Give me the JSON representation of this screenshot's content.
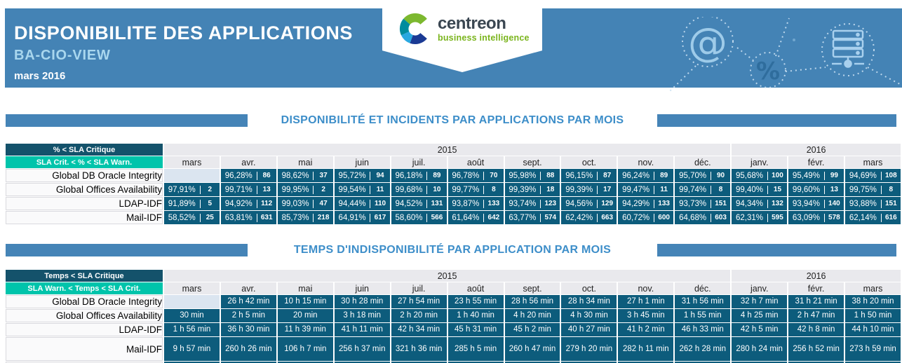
{
  "report": {
    "title": "DISPONIBILITE DES APPLICATIONS",
    "subtitle": "BA-CIO-VIEW",
    "period": "mars 2016"
  },
  "logo": {
    "brand": "centreon",
    "tagline": "business intelligence"
  },
  "decor_icons": [
    "at-sign",
    "percent",
    "server"
  ],
  "sections": [
    {
      "title": "DISPONIBILITÉ ET INCIDENTS PAR APPLICATIONS PAR MOIS",
      "table": {
        "legend_critical": "% < SLA Critique",
        "legend_warning": "SLA Crit. < % < SLA Warn.",
        "years": [
          {
            "label": "2015",
            "span": 10
          },
          {
            "label": "2016",
            "span": 3
          }
        ],
        "months": [
          "mars",
          "avr.",
          "mai",
          "juin",
          "juil.",
          "août",
          "sept.",
          "oct.",
          "nov.",
          "déc.",
          "janv.",
          "févr.",
          "mars"
        ],
        "rows": [
          {
            "label": "Global DB Oracle Integrity",
            "cells": [
              null,
              {
                "pct": "96,28%",
                "n": "86"
              },
              {
                "pct": "98,62%",
                "n": "37"
              },
              {
                "pct": "95,72%",
                "n": "94"
              },
              {
                "pct": "96,18%",
                "n": "89"
              },
              {
                "pct": "96,78%",
                "n": "70"
              },
              {
                "pct": "95,98%",
                "n": "88"
              },
              {
                "pct": "96,15%",
                "n": "87"
              },
              {
                "pct": "96,24%",
                "n": "89"
              },
              {
                "pct": "95,70%",
                "n": "90"
              },
              {
                "pct": "95,68%",
                "n": "100"
              },
              {
                "pct": "95,49%",
                "n": "99"
              },
              {
                "pct": "94,69%",
                "n": "108"
              }
            ]
          },
          {
            "label": "Global Offices Availability",
            "cells": [
              {
                "pct": "97,91%",
                "n": "2"
              },
              {
                "pct": "99,71%",
                "n": "13"
              },
              {
                "pct": "99,95%",
                "n": "2"
              },
              {
                "pct": "99,54%",
                "n": "11"
              },
              {
                "pct": "99,68%",
                "n": "10"
              },
              {
                "pct": "99,77%",
                "n": "8"
              },
              {
                "pct": "99,39%",
                "n": "18"
              },
              {
                "pct": "99,39%",
                "n": "17"
              },
              {
                "pct": "99,47%",
                "n": "11"
              },
              {
                "pct": "99,74%",
                "n": "8"
              },
              {
                "pct": "99,40%",
                "n": "15"
              },
              {
                "pct": "99,60%",
                "n": "13"
              },
              {
                "pct": "99,75%",
                "n": "8"
              }
            ]
          },
          {
            "label": "LDAP-IDF",
            "cells": [
              {
                "pct": "91,89%",
                "n": "5"
              },
              {
                "pct": "94,92%",
                "n": "112"
              },
              {
                "pct": "99,03%",
                "n": "47"
              },
              {
                "pct": "94,44%",
                "n": "110"
              },
              {
                "pct": "94,52%",
                "n": "131"
              },
              {
                "pct": "93,87%",
                "n": "133"
              },
              {
                "pct": "93,74%",
                "n": "123"
              },
              {
                "pct": "94,56%",
                "n": "129"
              },
              {
                "pct": "94,29%",
                "n": "133"
              },
              {
                "pct": "93,73%",
                "n": "151"
              },
              {
                "pct": "94,34%",
                "n": "132"
              },
              {
                "pct": "93,94%",
                "n": "140"
              },
              {
                "pct": "93,88%",
                "n": "151"
              }
            ]
          },
          {
            "label": "Mail-IDF",
            "cells": [
              {
                "pct": "58,52%",
                "n": "25"
              },
              {
                "pct": "63,81%",
                "n": "631"
              },
              {
                "pct": "85,73%",
                "n": "218"
              },
              {
                "pct": "64,91%",
                "n": "617"
              },
              {
                "pct": "58,60%",
                "n": "566"
              },
              {
                "pct": "61,64%",
                "n": "642"
              },
              {
                "pct": "63,77%",
                "n": "574"
              },
              {
                "pct": "62,42%",
                "n": "663"
              },
              {
                "pct": "60,72%",
                "n": "600"
              },
              {
                "pct": "64,68%",
                "n": "603"
              },
              {
                "pct": "62,31%",
                "n": "595"
              },
              {
                "pct": "63,09%",
                "n": "578"
              },
              {
                "pct": "62,14%",
                "n": "616"
              }
            ]
          }
        ]
      }
    },
    {
      "title": "TEMPS D'INDISPONIBILITÉ PAR APPLICATION PAR MOIS",
      "table": {
        "legend_critical": "Temps < SLA Critique",
        "legend_warning": "SLA Warn. < Temps < SLA Crit.",
        "years": [
          {
            "label": "2015",
            "span": 10
          },
          {
            "label": "2016",
            "span": 3
          }
        ],
        "months": [
          "mars",
          "avr.",
          "mai",
          "juin",
          "juil.",
          "août",
          "sept.",
          "oct.",
          "nov.",
          "déc.",
          "janv.",
          "févr.",
          "mars"
        ],
        "rows": [
          {
            "label": "Global DB Oracle Integrity",
            "cells": [
              null,
              "26 h 42 min",
              "10 h 15 min",
              "30 h 28 min",
              "27 h 54 min",
              "23 h 55 min",
              "28 h 56 min",
              "28 h 34 min",
              "27 h 1 min",
              "31 h 56 min",
              "32 h 7 min",
              "31 h 21 min",
              "38 h 20 min"
            ]
          },
          {
            "label": "Global Offices Availability",
            "cells": [
              "30 min",
              "2 h 5 min",
              "20 min",
              "3 h 18 min",
              "2 h 20 min",
              "1 h 40 min",
              "4 h 20 min",
              "4 h 30 min",
              "3 h 45 min",
              "1 h 55 min",
              "4 h 25 min",
              "2 h 47 min",
              "1 h 50 min"
            ]
          },
          {
            "label": "LDAP-IDF",
            "cells": [
              "1 h 56 min",
              "36 h 30 min",
              "11 h 39 min",
              "41 h 11 min",
              "42 h 34 min",
              "45 h 31 min",
              "45 h 2 min",
              "40 h 27 min",
              "41 h 2 min",
              "46 h 33 min",
              "42 h 5 min",
              "42 h 8 min",
              "44 h 10 min"
            ]
          },
          {
            "label": "Mail-IDF",
            "cells": [
              "9 h 57 min",
              "260 h 26 min",
              "106 h 7 min",
              "256 h 37 min",
              "321 h 36 min",
              "285 h 5 min",
              "260 h 47 min",
              "279 h 20 min",
              "282 h 11 min",
              "262 h 28 min",
              "280 h 24 min",
              "256 h 52 min",
              "273 h 59 min"
            ]
          },
          {
            "label": "",
            "cutoff": true,
            "cells": [
              "",
              "",
              "",
              "",
              "",
              "",
              "",
              "",
              "",
              "",
              "",
              "",
              ""
            ]
          }
        ]
      }
    }
  ],
  "colors": {
    "banner": "#4483b5",
    "accent_bar": "#4584b7",
    "section_title": "#3d8ec9",
    "subtitle": "#a9d7ee",
    "sla_critical": "#14526b",
    "sla_warning": "#00c4ab",
    "cell": "#0d5c7c",
    "empty_cell": "#dbe5f0",
    "header_gray": "#e9e9ed",
    "logo_dark": "#3a4651",
    "logo_green": "#7ab41c"
  }
}
